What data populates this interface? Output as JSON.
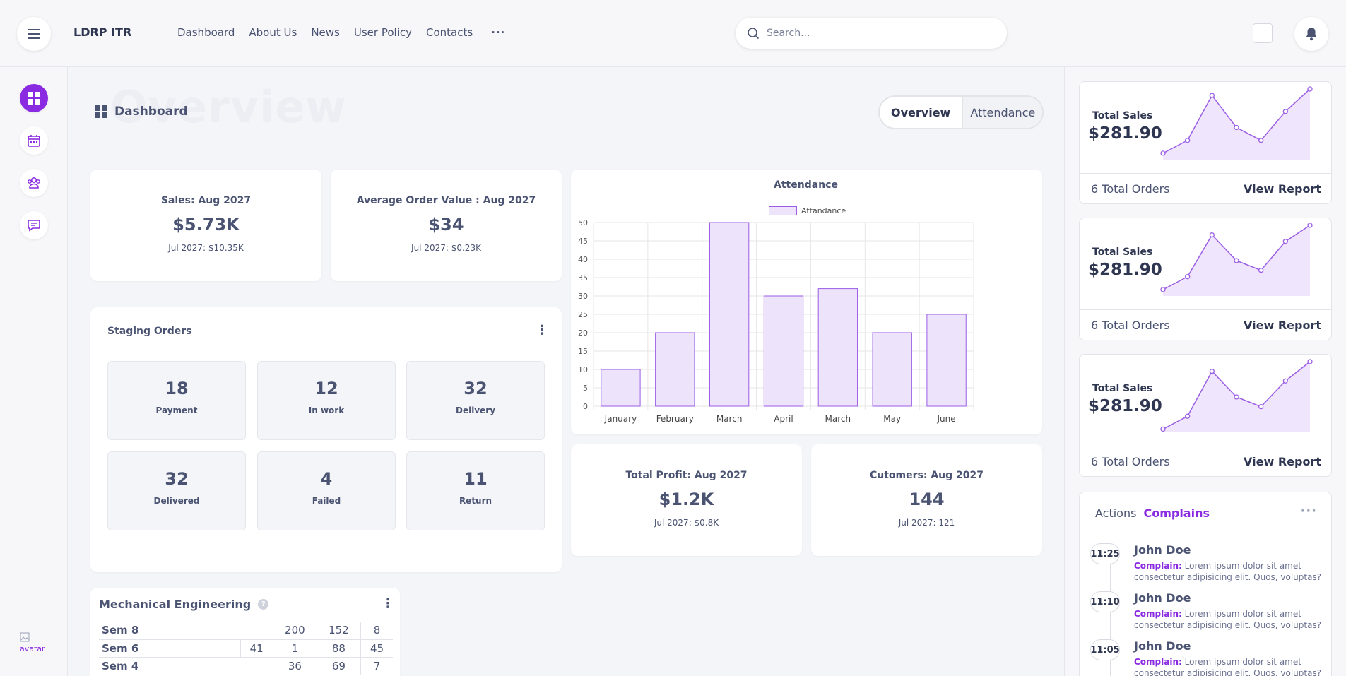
{
  "header": {
    "brand": "LDRP ITR",
    "nav": [
      "Dashboard",
      "About Us",
      "News",
      "User Policy",
      "Contacts"
    ],
    "nav_more": "···",
    "search_placeholder": "Search..."
  },
  "sidebar": {
    "items": [
      "grid-icon",
      "calendar-icon",
      "users-icon",
      "chat-icon"
    ],
    "avatar_alt": "avatar"
  },
  "page": {
    "ghost_title": "Overview",
    "title": "Dashboard",
    "tabs": [
      "Overview",
      "Attendance"
    ]
  },
  "stats": [
    {
      "label": "Sales: Aug 2027",
      "value": "$5.73K",
      "sub": "Jul 2027: $10.35K"
    },
    {
      "label": "Average Order Value : Aug 2027",
      "value": "$34",
      "sub": "Jul 2027: $0.23K"
    },
    {
      "label": "Total Profit: Aug 2027",
      "value": "$1.2K",
      "sub": "Jul 2027: $0.8K"
    },
    {
      "label": "Cutomers: Aug 2027",
      "value": "144",
      "sub": "Jul 2027: 121"
    }
  ],
  "staging": {
    "title": "Staging Orders",
    "tiles": [
      {
        "num": "18",
        "cap": "Payment"
      },
      {
        "num": "12",
        "cap": "In work"
      },
      {
        "num": "32",
        "cap": "Delivery"
      },
      {
        "num": "32",
        "cap": "Delivered"
      },
      {
        "num": "4",
        "cap": "Failed"
      },
      {
        "num": "11",
        "cap": "Return"
      }
    ]
  },
  "mech": {
    "title": "Mechanical Engineering",
    "help": "?",
    "rows": [
      {
        "name": "Sem 8",
        "cells": [
          "",
          "200",
          "152",
          "8"
        ]
      },
      {
        "name": "Sem 6",
        "cells": [
          "41",
          "1",
          "88",
          "45"
        ]
      },
      {
        "name": "Sem 4",
        "cells": [
          "",
          "36",
          "69",
          "7"
        ]
      }
    ]
  },
  "chart_data": {
    "type": "bar",
    "title": "Attendance",
    "legend": "Attandance",
    "categories": [
      "January",
      "February",
      "March",
      "April",
      "March",
      "May",
      "June"
    ],
    "series": [
      {
        "name": "Attandance",
        "values": [
          10,
          20,
          50,
          30,
          32,
          20,
          25
        ]
      }
    ],
    "ylim": [
      0,
      50
    ],
    "yticks": [
      0,
      5,
      10,
      15,
      20,
      25,
      30,
      35,
      40,
      45,
      50
    ],
    "grid": true,
    "legend_position": "top",
    "colors": {
      "fill": "#ede3fb",
      "stroke": "#9b5de5"
    }
  },
  "sales_cards": [
    {
      "label": "Total Sales",
      "amount": "$281.90",
      "orders": "6 Total Orders",
      "report": "View Report",
      "trend": [
        0.1,
        0.3,
        1.0,
        0.5,
        0.3,
        0.75,
        1.1
      ]
    },
    {
      "label": "Total Sales",
      "amount": "$281.90",
      "orders": "6 Total Orders",
      "report": "View Report",
      "trend": [
        0.1,
        0.3,
        0.95,
        0.55,
        0.4,
        0.85,
        1.1
      ]
    },
    {
      "label": "Total Sales",
      "amount": "$281.90",
      "orders": "6 Total Orders",
      "report": "View Report",
      "trend": [
        0.05,
        0.25,
        0.95,
        0.55,
        0.4,
        0.8,
        1.1
      ]
    }
  ],
  "actions": {
    "tab1": "Actions",
    "tab2": "Complains",
    "more": "···",
    "items": [
      {
        "time": "11:25",
        "name": "John Doe",
        "label": "Complain:",
        "text": "Lorem ipsum dolor sit amet consectetur adipisicing elit. Quos, voluptas?"
      },
      {
        "time": "11:10",
        "name": "John Doe",
        "label": "Complain:",
        "text": "Lorem ipsum dolor sit amet consectetur adipisicing elit. Quos, voluptas?"
      },
      {
        "time": "11:05",
        "name": "John Doe",
        "label": "Complain:",
        "text": "Lorem ipsum dolor sit amet consectetur adipisicing elit. Quos, voluptas?"
      }
    ]
  },
  "colors": {
    "accent": "#8a2be2",
    "text": "#4a5372",
    "bg": "#f4f5f8"
  }
}
